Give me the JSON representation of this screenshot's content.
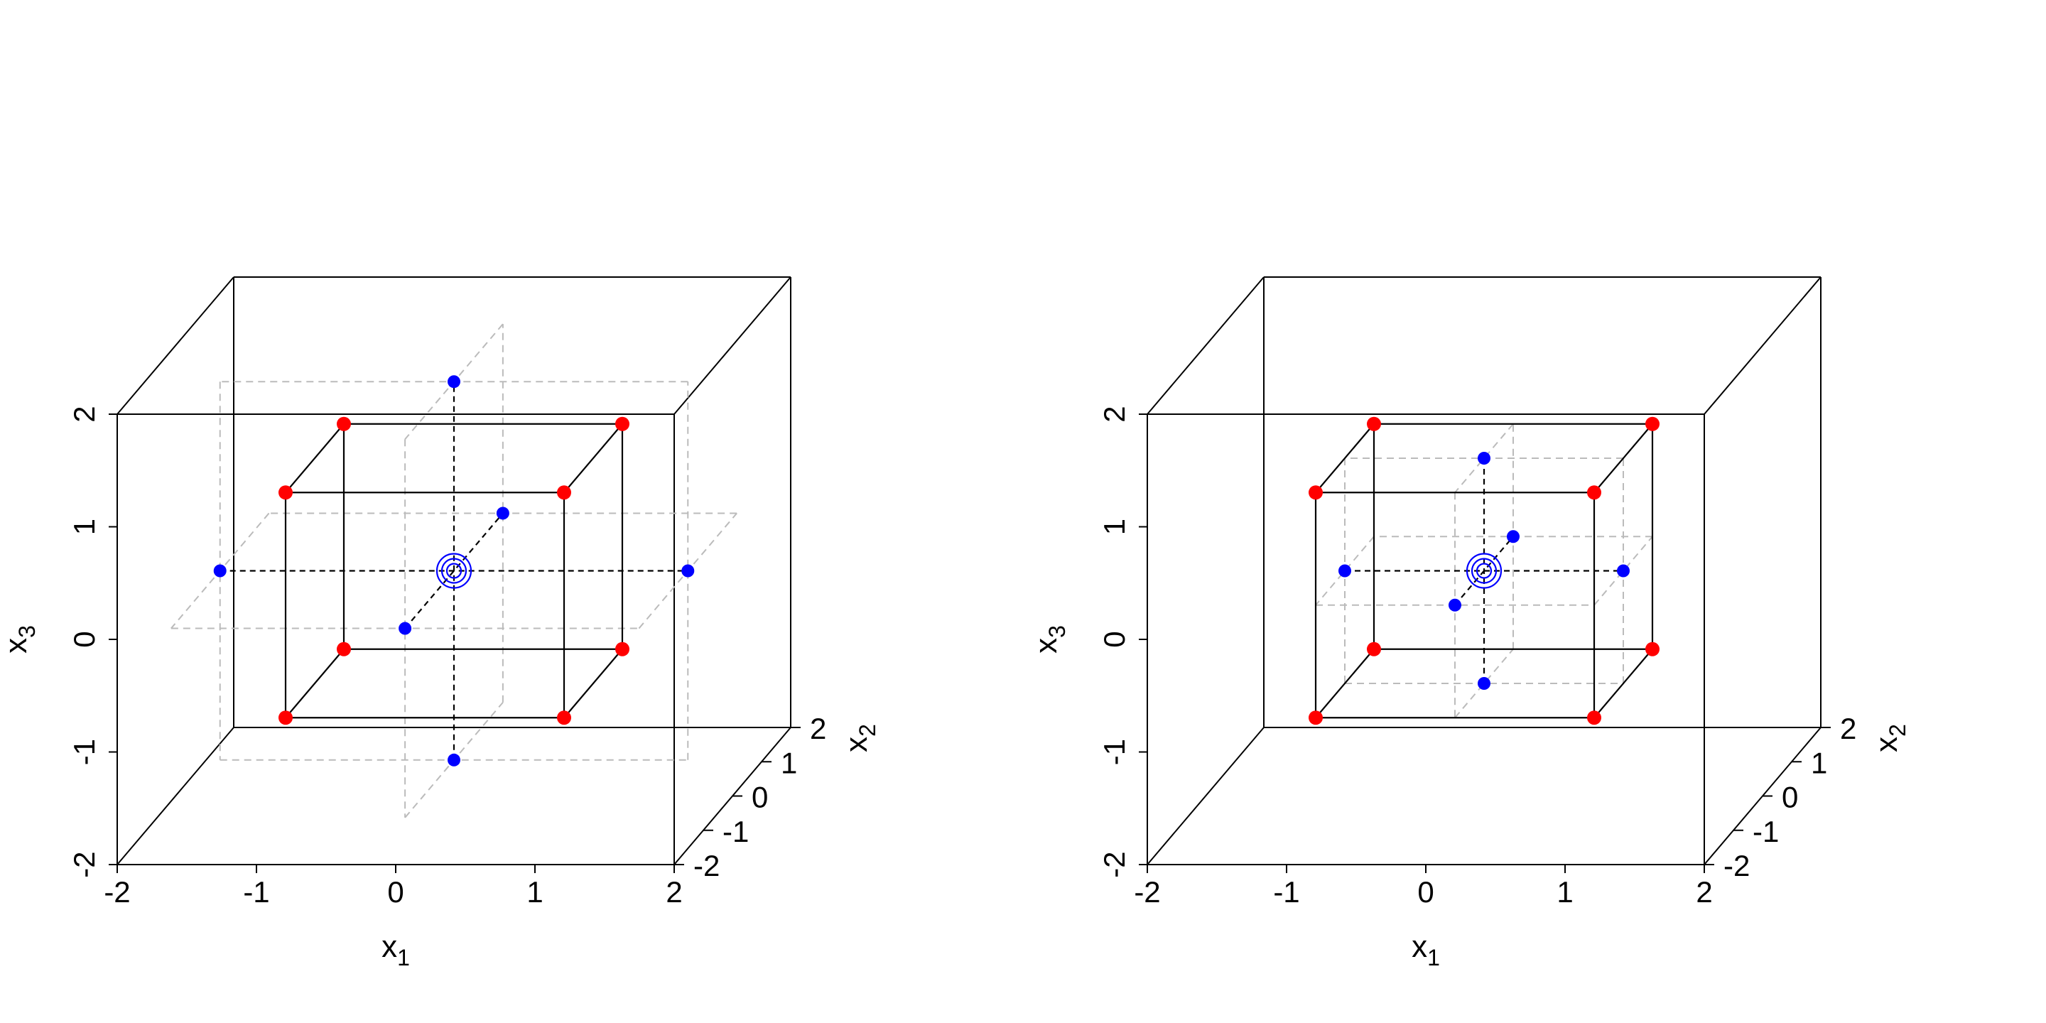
{
  "chart_data": [
    {
      "type": "scatter",
      "projection": "3d-oblique",
      "title": "",
      "xlabel": "x",
      "xlabel_sub": "1",
      "ylabel": "x",
      "ylabel_sub": "2",
      "zlabel": "x",
      "zlabel_sub": "3",
      "xlim": [
        -2,
        2
      ],
      "ylim": [
        -2,
        2
      ],
      "zlim": [
        -2,
        2
      ],
      "x_ticks": [
        "-2",
        "-1",
        "0",
        "1",
        "2"
      ],
      "y_ticks": [
        "-2",
        "-1",
        "0",
        "1",
        "2"
      ],
      "z_ticks": [
        "-2",
        "-1",
        "0",
        "1",
        "2"
      ],
      "grid": false,
      "legend": "none",
      "colors": {
        "factorial": "#ff0000",
        "axial": "#0000ff",
        "center": "#0000ff",
        "box": "#000000",
        "plane": "#bbbbbb"
      },
      "series": [
        {
          "kind": "factorial",
          "points": [
            [
              -1,
              -1,
              -1
            ],
            [
              1,
              -1,
              -1
            ],
            [
              -1,
              1,
              -1
            ],
            [
              1,
              1,
              -1
            ],
            [
              -1,
              -1,
              1
            ],
            [
              1,
              -1,
              1
            ],
            [
              -1,
              1,
              1
            ],
            [
              1,
              1,
              1
            ]
          ]
        },
        {
          "kind": "axial",
          "points": [
            [
              -1.68,
              0,
              0
            ],
            [
              1.68,
              0,
              0
            ],
            [
              0,
              -1.68,
              0
            ],
            [
              0,
              1.68,
              0
            ],
            [
              0,
              0,
              -1.68
            ],
            [
              0,
              0,
              1.68
            ]
          ]
        },
        {
          "kind": "center",
          "points": [
            [
              0,
              0,
              0
            ]
          ]
        }
      ]
    },
    {
      "type": "scatter",
      "projection": "3d-oblique",
      "title": "",
      "xlabel": "x",
      "xlabel_sub": "1",
      "ylabel": "x",
      "ylabel_sub": "2",
      "zlabel": "x",
      "zlabel_sub": "3",
      "xlim": [
        -2,
        2
      ],
      "ylim": [
        -2,
        2
      ],
      "zlim": [
        -2,
        2
      ],
      "x_ticks": [
        "-2",
        "-1",
        "0",
        "1",
        "2"
      ],
      "y_ticks": [
        "-2",
        "-1",
        "0",
        "1",
        "2"
      ],
      "z_ticks": [
        "-2",
        "-1",
        "0",
        "1",
        "2"
      ],
      "grid": false,
      "legend": "none",
      "colors": {
        "factorial": "#ff0000",
        "axial": "#0000ff",
        "center": "#0000ff",
        "box": "#000000",
        "plane": "#bbbbbb"
      },
      "series": [
        {
          "kind": "factorial",
          "points": [
            [
              -1,
              -1,
              -1
            ],
            [
              1,
              -1,
              -1
            ],
            [
              -1,
              1,
              -1
            ],
            [
              1,
              1,
              -1
            ],
            [
              -1,
              -1,
              1
            ],
            [
              1,
              -1,
              1
            ],
            [
              -1,
              1,
              1
            ],
            [
              1,
              1,
              1
            ]
          ]
        },
        {
          "kind": "axial",
          "points": [
            [
              -1,
              0,
              0
            ],
            [
              1,
              0,
              0
            ],
            [
              0,
              -1,
              0
            ],
            [
              0,
              1,
              0
            ],
            [
              0,
              0,
              -1
            ],
            [
              0,
              0,
              1
            ]
          ]
        },
        {
          "kind": "center",
          "points": [
            [
              0,
              0,
              0
            ]
          ]
        }
      ]
    }
  ]
}
